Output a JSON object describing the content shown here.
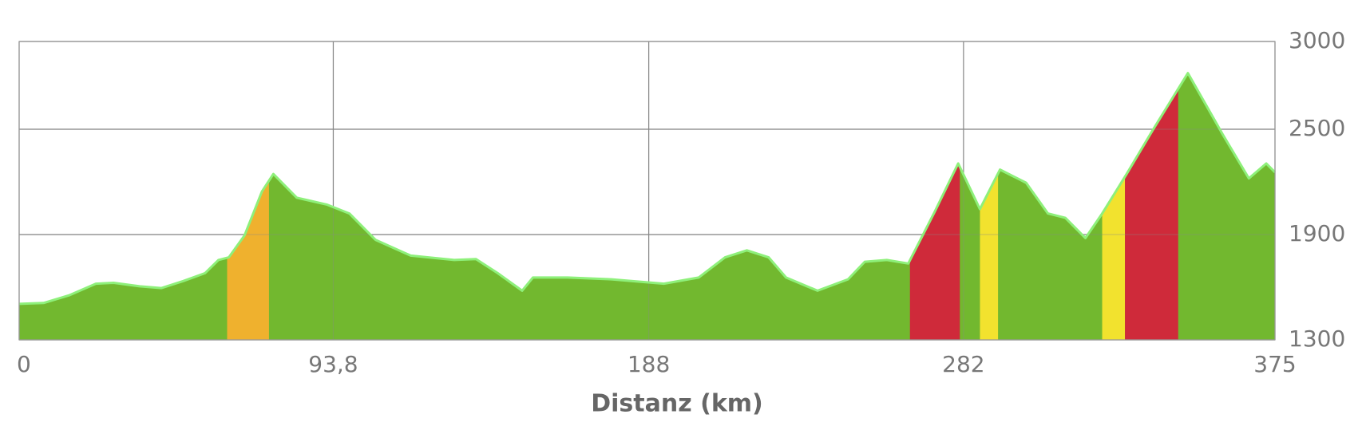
{
  "chart_data": {
    "type": "area",
    "x_label": "Distanz (km)",
    "x": [
      0,
      7.3,
      15.1,
      22.9,
      28.2,
      36.0,
      42.5,
      49.0,
      55.5,
      59.5,
      62.6,
      67.3,
      72.5,
      75.9,
      82.9,
      92.0,
      98.6,
      106.4,
      116.9,
      129.9,
      136.4,
      142.9,
      150.2,
      153.4,
      163.8,
      176.8,
      192.5,
      202.9,
      210.8,
      217.3,
      223.8,
      229.0,
      238.4,
      247.5,
      252.5,
      259.1,
      265.5,
      273.4,
      280.4,
      286.9,
      292.9,
      300.7,
      307.2,
      312.4,
      318.4,
      323.4,
      330.7,
      338.5,
      349.0,
      359.4,
      367.2,
      372.4,
      375
    ],
    "values": [
      1505,
      1510,
      1555,
      1620,
      1625,
      1605,
      1595,
      1635,
      1680,
      1755,
      1770,
      1895,
      2145,
      2245,
      2110,
      2070,
      2020,
      1870,
      1780,
      1755,
      1760,
      1680,
      1580,
      1655,
      1655,
      1645,
      1620,
      1655,
      1770,
      1810,
      1770,
      1655,
      1580,
      1645,
      1745,
      1755,
      1735,
      2030,
      2305,
      2045,
      2270,
      2195,
      2020,
      1995,
      1880,
      2020,
      2245,
      2495,
      2820,
      2470,
      2220,
      2305,
      2255
    ],
    "color": "#72b82f",
    "line_color": "#8ef07a",
    "highlights": [
      {
        "from": 62.1,
        "to": 74.6,
        "color": "#efb12e"
      },
      {
        "from": 266.0,
        "to": 280.9,
        "color": "#cf2a3a"
      },
      {
        "from": 286.9,
        "to": 292.3,
        "color": "#f2e22e"
      },
      {
        "from": 323.4,
        "to": 330.2,
        "color": "#f2e22e"
      },
      {
        "from": 330.2,
        "to": 346.1,
        "color": "#cf2a3a"
      }
    ],
    "xlim": [
      0,
      375
    ],
    "xticks": [
      0,
      {
        "value": 93.8,
        "label": "93,8"
      },
      188,
      282,
      375
    ],
    "ylim": [
      1300,
      3000
    ],
    "yticks": [
      1300,
      1900,
      2500,
      3000
    ],
    "grid": true
  }
}
